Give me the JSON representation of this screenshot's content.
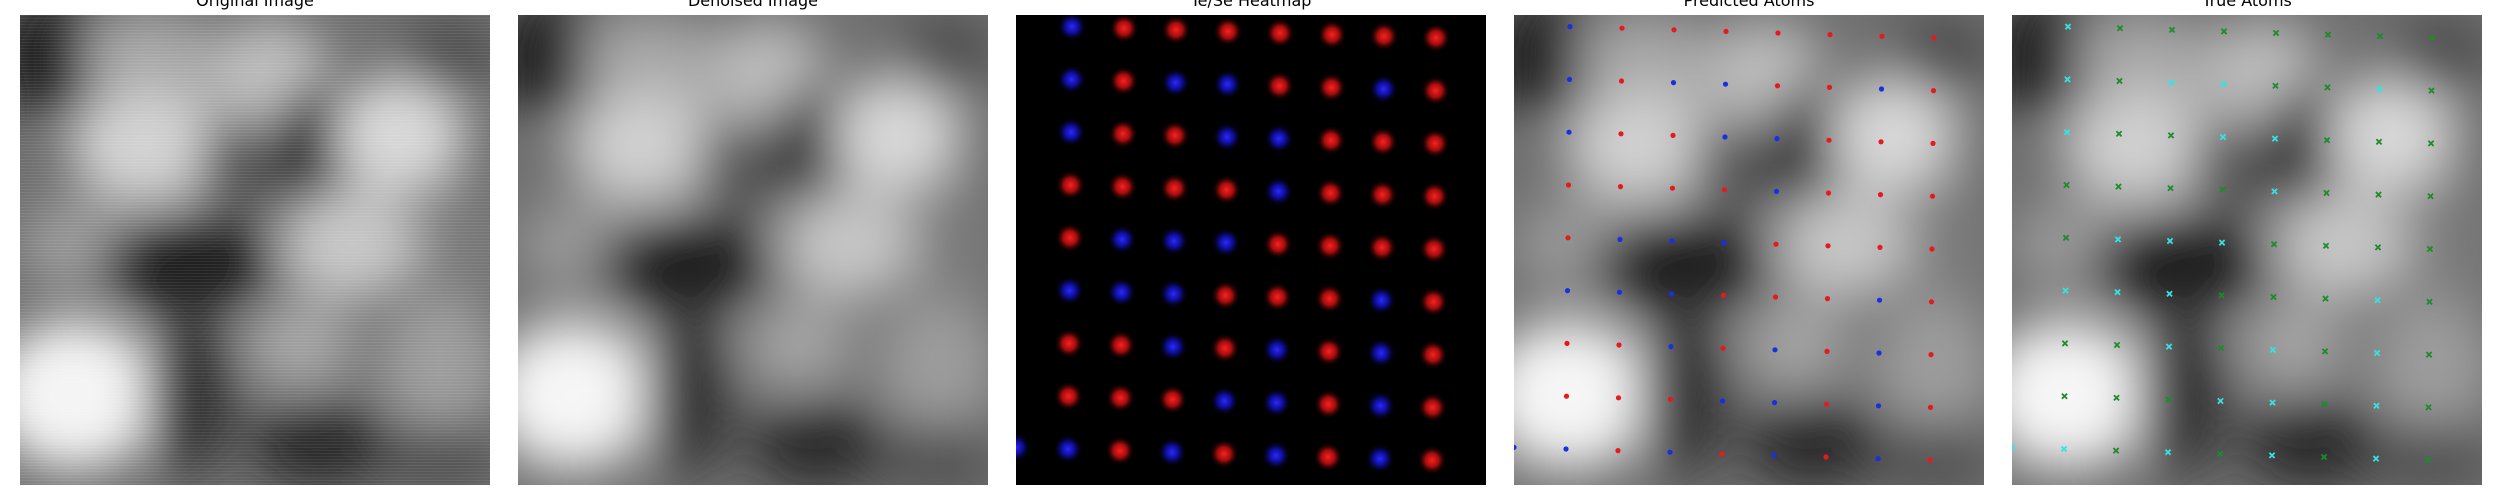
{
  "panels": [
    {
      "title": "Original Image"
    },
    {
      "title": "Denoised Image"
    },
    {
      "title": "Te/Se Heatmap"
    },
    {
      "title": "Predicted Atoms"
    },
    {
      "title": "True Atoms"
    }
  ],
  "colors": {
    "te": "#e8191b",
    "se": "#1a2fe0",
    "true_te": "#1e8a2a",
    "true_se": "#36e2e2"
  },
  "atoms": [
    {
      "row": 0,
      "cells": [
        "-",
        "se",
        "te",
        "te",
        "te",
        "te",
        "te",
        "te",
        "te"
      ]
    },
    {
      "row": 1,
      "cells": [
        "-",
        "se",
        "te",
        "se",
        "se",
        "te",
        "te",
        "se",
        "te"
      ]
    },
    {
      "row": 2,
      "cells": [
        "-",
        "se",
        "te",
        "te",
        "se",
        "se",
        "te",
        "te",
        "te"
      ]
    },
    {
      "row": 3,
      "cells": [
        "-",
        "te",
        "te",
        "te",
        "te",
        "se",
        "te",
        "te",
        "te"
      ]
    },
    {
      "row": 4,
      "cells": [
        "-",
        "te",
        "se",
        "se",
        "se",
        "te",
        "te",
        "te",
        "te"
      ]
    },
    {
      "row": 5,
      "cells": [
        "-",
        "se",
        "se",
        "se",
        "te",
        "te",
        "te",
        "se",
        "te"
      ]
    },
    {
      "row": 6,
      "cells": [
        "-",
        "te",
        "te",
        "se",
        "te",
        "se",
        "te",
        "se",
        "te"
      ]
    },
    {
      "row": 7,
      "cells": [
        "-",
        "te",
        "te",
        "te",
        "se",
        "se",
        "te",
        "se",
        "te"
      ]
    },
    {
      "row": 8,
      "cells": [
        "se",
        "se",
        "te",
        "se",
        "te",
        "se",
        "te",
        "se",
        "te"
      ]
    }
  ]
}
